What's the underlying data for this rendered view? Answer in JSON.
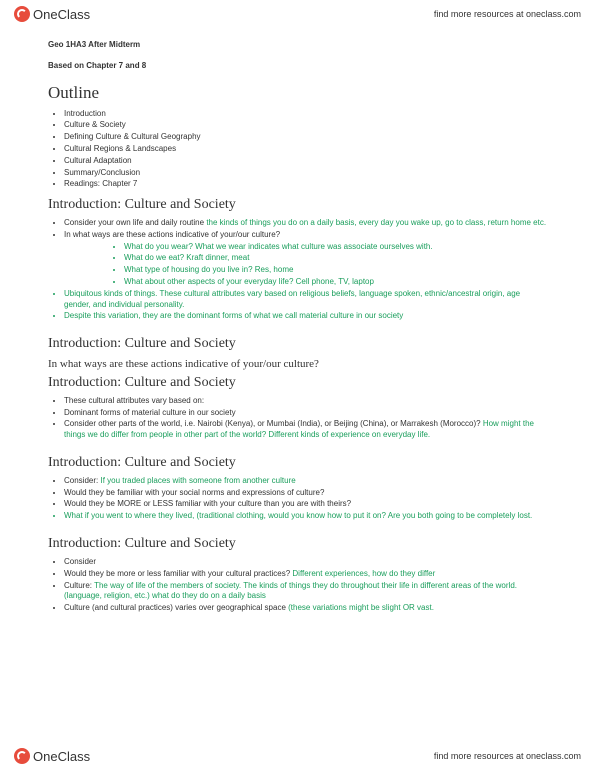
{
  "brand": {
    "name": "OneClass",
    "tagline": "find more resources at oneclass.com"
  },
  "doc": {
    "course": "Geo 1HA3 After Midterm",
    "basis": "Based on Chapter 7 and 8",
    "outline_heading": "Outline",
    "outline_items": [
      "Introduction",
      "Culture & Society",
      "Defining Culture & Cultural Geography",
      "Cultural Regions & Landscapes",
      "Cultural Adaptation",
      "Summary/Conclusion",
      "Readings: Chapter 7"
    ],
    "sec1": {
      "heading": "Introduction: Culture and Society",
      "b1a": "Consider your own life and daily routine ",
      "b1b": "the kinds of things you do on a daily basis, every day you wake up, go to class, return home etc.",
      "b2": "In what ways are these actions indicative of your/our culture?",
      "sub1a": "What do you wear? ",
      "sub1b": "What we wear indicates what culture was associate ourselves with.",
      "sub2a": "What do we eat? ",
      "sub2b": "Kraft dinner, meat",
      "sub3a": "What type of housing do you live in? ",
      "sub3b": "Res, home",
      "sub4a": "What about other aspects of your everyday life? ",
      "sub4b": "Cell phone, TV, laptop",
      "b3": "Ubiquitous kinds of things. These cultural attributes vary based on religious beliefs, language spoken, ethnic/ancestral origin, age gender, and individual personality.",
      "b4": "Despite this variation, they are the dominant forms of what we call material culture in our society"
    },
    "sec2": {
      "heading": "Introduction: Culture and Society",
      "subq": "In what ways are these actions indicative of your/our culture?",
      "heading2": "Introduction: Culture and Society",
      "b1": "These cultural attributes vary based on:",
      "b2": "Dominant forms of material culture in our society",
      "b3a": "Consider other parts of the world, i.e. Nairobi (Kenya), or Mumbai (India), or Beijing (China), or Marrakesh (Morocco)? ",
      "b3b": "How might the things we do differ from people in other part of the world? Different kinds of experience on everyday life."
    },
    "sec3": {
      "heading": "Introduction: Culture and Society",
      "b1a": "Consider: ",
      "b1b": "If you traded places with someone from another culture",
      "b2": "Would they be familiar with your social norms and expressions of culture?",
      "b3": "Would they be MORE or LESS familiar with your culture than you are with theirs?",
      "b4": "What if you went to where they lived, (traditional clothing, would you know how to put it on? Are you both going to be completely lost."
    },
    "sec4": {
      "heading": "Introduction: Culture and Society",
      "b1": "Consider",
      "b2a": "Would they be more or less familiar with your cultural practices? ",
      "b2b": "Different experiences, how do they differ",
      "b3a": "Culture: ",
      "b3b": "The way of life of the members of society. The kinds of things they do throughout their life in different areas of the world. (language, religion, etc.) what do they do on a daily basis",
      "b4a": "Culture (and cultural practices) varies over geographical space ",
      "b4b": "(these variations might be slight OR vast."
    }
  }
}
